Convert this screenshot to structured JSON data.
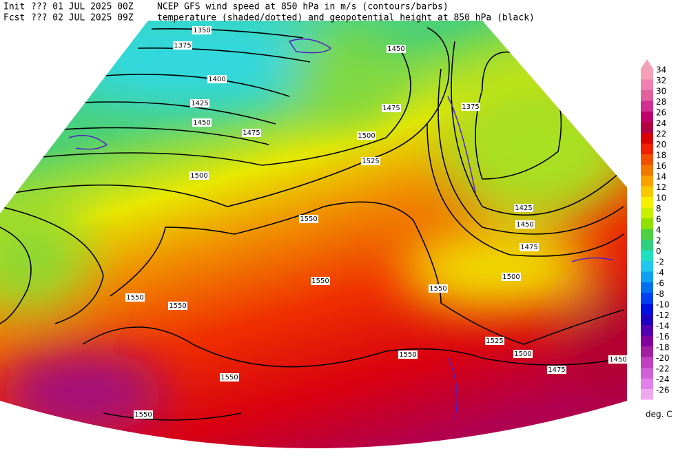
{
  "header": {
    "init_label": "Init",
    "init": "??? 01 JUL 2025 00Z",
    "fcst_label": "Fcst",
    "fcst": "??? 02 JUL 2025 09Z",
    "line1": "NCEP GFS wind speed at 850 hPa in m/s (contours/barbs)",
    "line2": "temperature (shaded/dotted) and geopotential height at 850 hPa (black)"
  },
  "colorbar": {
    "labels": [
      34,
      32,
      30,
      28,
      26,
      24,
      22,
      20,
      18,
      16,
      14,
      12,
      10,
      8,
      6,
      4,
      2,
      0,
      -2,
      -4,
      -6,
      -8,
      -10,
      -12,
      -14,
      -16,
      -18,
      -20,
      -22,
      -24,
      -26
    ],
    "colors": [
      "#f4a0b8",
      "#f080b0",
      "#e060a0",
      "#d03090",
      "#c0006a",
      "#b00040",
      "#d80000",
      "#f02000",
      "#f05000",
      "#f07800",
      "#f8a000",
      "#f8c800",
      "#f8f000",
      "#c8f000",
      "#90e000",
      "#50d040",
      "#30d080",
      "#20e0c0",
      "#20c8f0",
      "#10a0f0",
      "#0070f0",
      "#0040f0",
      "#0010e0",
      "#2000c0",
      "#5000b0",
      "#8000a0",
      "#a020a0",
      "#c040c0",
      "#d060d8",
      "#e080e8",
      "#f0a8f0"
    ],
    "unit": "deg. C"
  },
  "height_labels": [
    "1350",
    "1375",
    "1400",
    "1425",
    "1450",
    "1475",
    "1500",
    "1525",
    "1500",
    "1475",
    "1450",
    "1375",
    "1425",
    "1450",
    "1475",
    "1500",
    "1550",
    "1550",
    "1550",
    "1550",
    "1550",
    "1525",
    "1500",
    "1475",
    "1550",
    "1550",
    "1550",
    "1450"
  ]
}
